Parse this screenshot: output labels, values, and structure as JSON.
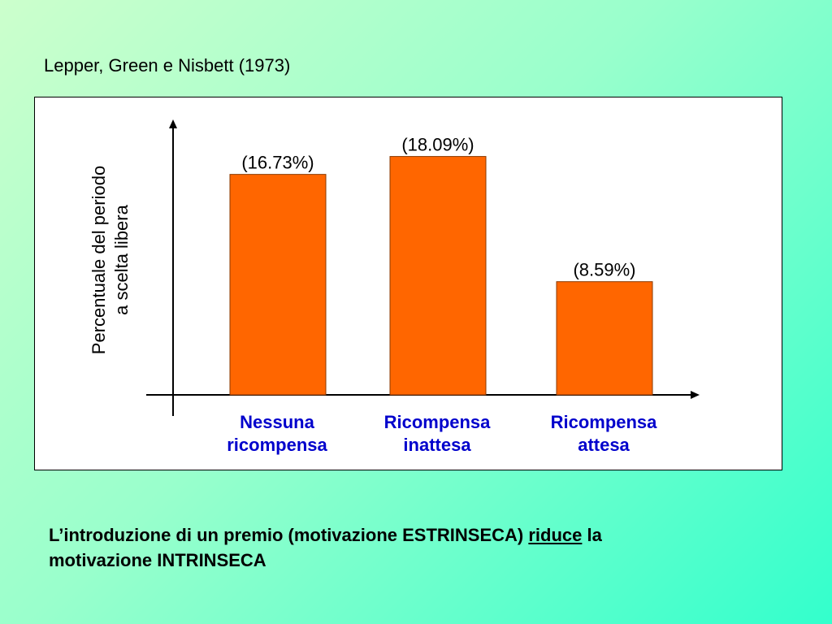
{
  "slide": {
    "title": "Lepper, Green e Nisbett (1973)",
    "conclusion": {
      "part1": "L’introduzione di un premio (motivazione ESTRINSECA) ",
      "emphasis": "riduce",
      "part2": " la",
      "line2": "motivazione INTRINSECA"
    }
  },
  "chart_data": {
    "type": "bar",
    "title": "",
    "ylabel_lines": [
      "Percentuale del periodo",
      "a scelta libera"
    ],
    "xlabel": "",
    "categories": [
      {
        "line1": "Nessuna",
        "line2": "ricompensa"
      },
      {
        "line1": "Ricompensa",
        "line2": "inattesa"
      },
      {
        "line1": "Ricompensa",
        "line2": "attesa"
      }
    ],
    "values": [
      16.73,
      18.09,
      8.59
    ],
    "value_labels": [
      "(16.73%)",
      "(18.09%)",
      "(8.59%)"
    ],
    "ylim": [
      0,
      20.9
    ],
    "grid": false,
    "colors": {
      "bar_fill": "#ff6600",
      "bar_stroke": "#8a3a00",
      "category_text": "#0000cc"
    }
  }
}
